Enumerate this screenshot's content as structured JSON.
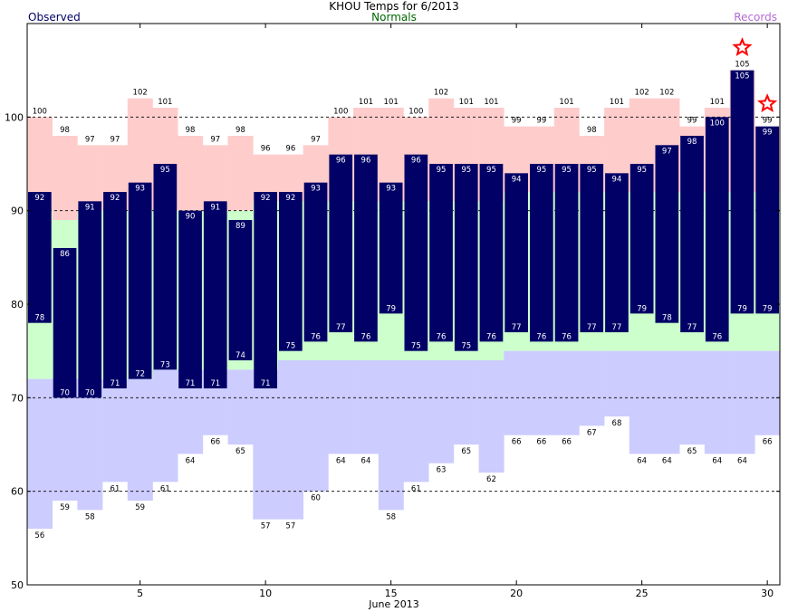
{
  "chart_data": {
    "type": "bar",
    "title": "KHOU Temps for 6/2013",
    "legend": {
      "observed": "Observed",
      "normals": "Normals",
      "records": "Records"
    },
    "xlabel": "June 2013",
    "ylabel": "",
    "ylim": [
      50,
      110
    ],
    "xlim": [
      0.5,
      30.5
    ],
    "y_ticks": [
      50,
      60,
      70,
      80,
      90,
      100
    ],
    "x_ticks": [
      5,
      10,
      15,
      20,
      25,
      30
    ],
    "grid": "dashed horizontal at 60, 70, 90, 100",
    "days": [
      1,
      2,
      3,
      4,
      5,
      6,
      7,
      8,
      9,
      10,
      11,
      12,
      13,
      14,
      15,
      16,
      17,
      18,
      19,
      20,
      21,
      22,
      23,
      24,
      25,
      26,
      27,
      28,
      29,
      30
    ],
    "observed_high": [
      92,
      86,
      91,
      92,
      93,
      95,
      90,
      91,
      89,
      92,
      92,
      93,
      96,
      96,
      93,
      96,
      95,
      95,
      95,
      94,
      95,
      95,
      95,
      94,
      95,
      97,
      98,
      100,
      105,
      99
    ],
    "observed_low": [
      78,
      70,
      70,
      71,
      72,
      73,
      71,
      71,
      74,
      71,
      75,
      76,
      77,
      76,
      79,
      75,
      76,
      75,
      76,
      77,
      76,
      76,
      77,
      77,
      79,
      78,
      77,
      76,
      79,
      79
    ],
    "normal_high": [
      90,
      89,
      90,
      90,
      90,
      90,
      90,
      90,
      90,
      91,
      91,
      91,
      91,
      91,
      91,
      91,
      91,
      91,
      91,
      92,
      92,
      92,
      92,
      92,
      92,
      92,
      92,
      92,
      92,
      92
    ],
    "normal_low": [
      72,
      72,
      72,
      72,
      72,
      73,
      73,
      73,
      73,
      73,
      74,
      74,
      74,
      74,
      74,
      74,
      74,
      74,
      74,
      75,
      75,
      75,
      75,
      75,
      75,
      75,
      75,
      75,
      75,
      75
    ],
    "record_high": [
      100,
      98,
      97,
      97,
      102,
      101,
      98,
      97,
      98,
      96,
      96,
      97,
      100,
      101,
      101,
      100,
      102,
      101,
      101,
      99,
      99,
      101,
      98,
      101,
      102,
      102,
      99,
      101,
      105,
      99
    ],
    "record_low": [
      56,
      59,
      58,
      61,
      59,
      61,
      64,
      66,
      65,
      57,
      57,
      60,
      64,
      64,
      58,
      61,
      63,
      65,
      62,
      66,
      66,
      66,
      67,
      68,
      64,
      64,
      65,
      64,
      64,
      66
    ],
    "record_events": [
      29,
      30
    ],
    "colors": {
      "observed": "#000066",
      "normal": "#ccffcc",
      "record_high_band": "#ffcccc",
      "record_low_band": "#ccccff",
      "record_marker": "#ff0000",
      "normals_text": "#006600",
      "records_text": "#b36bd6"
    }
  }
}
